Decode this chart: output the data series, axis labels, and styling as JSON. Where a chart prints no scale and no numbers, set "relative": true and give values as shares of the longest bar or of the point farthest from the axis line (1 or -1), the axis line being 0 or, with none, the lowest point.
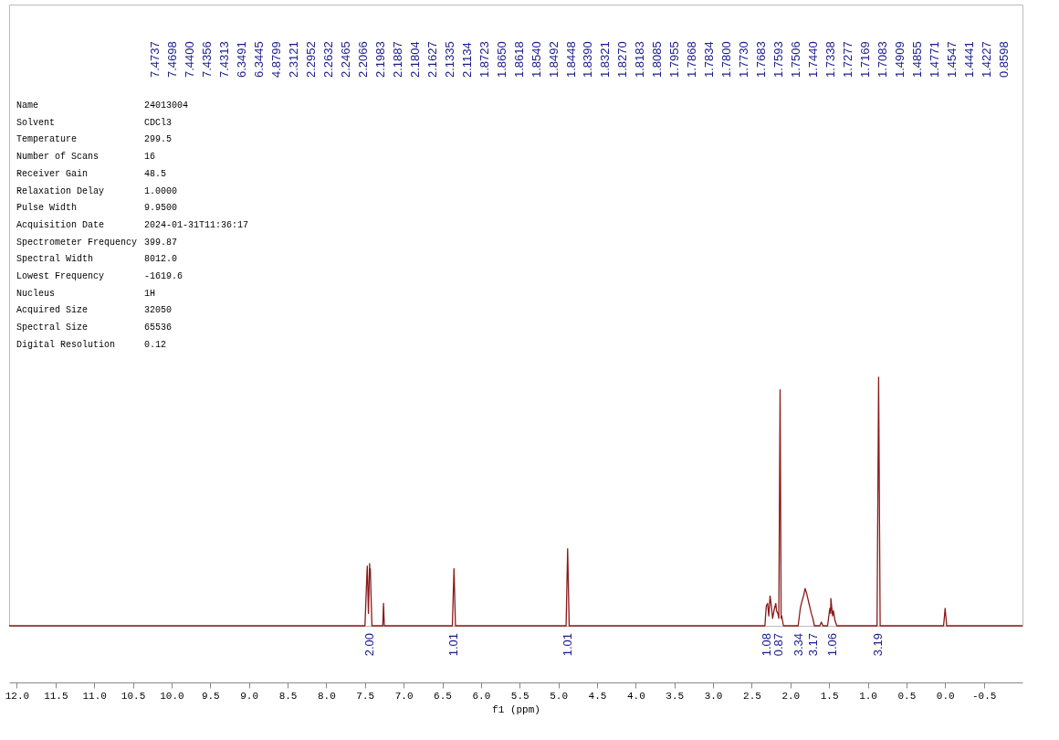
{
  "chart_data": {
    "type": "line",
    "relative": true,
    "xlabel": "f1 (ppm)",
    "grid": false,
    "marker": "none",
    "line_style": "solid",
    "xlim": [
      12.1,
      -1.0
    ],
    "xticks": [
      {
        "value": 12,
        "label": "12.0"
      },
      {
        "value": 11.5,
        "label": "11.5"
      },
      {
        "value": 11,
        "label": "11.0"
      },
      {
        "value": 10.5,
        "label": "10.5"
      },
      {
        "value": 10,
        "label": "10.0"
      },
      {
        "value": 9.5,
        "label": "9.5"
      },
      {
        "value": 9,
        "label": "9.0"
      },
      {
        "value": 8.5,
        "label": "8.5"
      },
      {
        "value": 8,
        "label": "8.0"
      },
      {
        "value": 7.5,
        "label": "7.5"
      },
      {
        "value": 7,
        "label": "7.0"
      },
      {
        "value": 6.5,
        "label": "6.5"
      },
      {
        "value": 6,
        "label": "6.0"
      },
      {
        "value": 5.5,
        "label": "5.5"
      },
      {
        "value": 5,
        "label": "5.0"
      },
      {
        "value": 4.5,
        "label": "4.5"
      },
      {
        "value": 4,
        "label": "4.0"
      },
      {
        "value": 3.5,
        "label": "3.5"
      },
      {
        "value": 3,
        "label": "3.0"
      },
      {
        "value": 2.5,
        "label": "2.5"
      },
      {
        "value": 2,
        "label": "2.0"
      },
      {
        "value": 1.5,
        "label": "1.5"
      },
      {
        "value": 1,
        "label": "1.0"
      },
      {
        "value": 0.5,
        "label": "0.5"
      },
      {
        "value": 0,
        "label": "0.0"
      },
      {
        "value": -0.5,
        "label": "-0.5"
      }
    ],
    "series": [
      {
        "color": "#8b1a1a",
        "x": [
          12.1,
          7.5,
          7.4737,
          7.4698,
          7.455,
          7.44,
          7.4356,
          7.4313,
          7.41,
          7.27,
          7.26,
          7.25,
          6.37,
          6.3491,
          6.33,
          4.9,
          4.8799,
          4.86,
          2.33,
          2.3121,
          2.2952,
          2.28,
          2.2632,
          2.2465,
          2.23,
          2.2066,
          2.1887,
          2.18,
          2.1627,
          2.15,
          2.1335,
          2.12,
          2.1134,
          2.09,
          1.9,
          1.8723,
          1.85,
          1.83,
          1.81,
          1.79,
          1.775,
          1.76,
          1.745,
          1.73,
          1.71,
          1.69,
          1.62,
          1.6,
          1.58,
          1.52,
          1.4909,
          1.48,
          1.4771,
          1.455,
          1.4441,
          1.4227,
          1.4,
          0.88,
          0.8598,
          0.84,
          0.02,
          0.0,
          -0.02,
          -1.0
        ],
        "values": [
          0,
          0,
          0.22,
          0.24,
          0.05,
          0.25,
          0.2,
          0.23,
          0,
          0,
          0.09,
          0,
          0,
          0.23,
          0,
          0,
          0.31,
          0,
          0,
          0.08,
          0.09,
          0.04,
          0.12,
          0.08,
          0.03,
          0.07,
          0.09,
          0.06,
          0.05,
          0.03,
          0.95,
          0.03,
          0.04,
          0,
          0,
          0.07,
          0.1,
          0.12,
          0.15,
          0.13,
          0.11,
          0.09,
          0.07,
          0.05,
          0.03,
          0,
          0,
          0.015,
          0,
          0,
          0.07,
          0.05,
          0.11,
          0.04,
          0.06,
          0.02,
          0,
          0,
          1,
          0,
          0,
          0.07,
          0,
          0
        ]
      }
    ],
    "annotations": [
      {
        "text": "2.00",
        "x": 7.44,
        "y": 0
      },
      {
        "text": "1.01",
        "x": 6.35,
        "y": 0
      },
      {
        "text": "1.01",
        "x": 4.88,
        "y": 0
      },
      {
        "text": "1.08",
        "x": 2.3,
        "y": 0
      },
      {
        "text": "0.87",
        "x": 2.15,
        "y": 0
      },
      {
        "text": "3.34",
        "x": 1.89,
        "y": 0
      },
      {
        "text": "3.17",
        "x": 1.7,
        "y": 0
      },
      {
        "text": "1.06",
        "x": 1.46,
        "y": 0
      },
      {
        "text": "3.19",
        "x": 0.86,
        "y": 0
      },
      "7.4737",
      "7.4698",
      "7.4400",
      "7.4356",
      "7.4313",
      "6.3491",
      "6.3445",
      "4.8799",
      "2.3121",
      "2.2952",
      "2.2632",
      "2.2465",
      "2.2066",
      "2.1983",
      "2.1887",
      "2.1804",
      "2.1627",
      "2.1335",
      "2.1134",
      "1.8723",
      "1.8650",
      "1.8618",
      "1.8540",
      "1.8492",
      "1.8448",
      "1.8390",
      "1.8321",
      "1.8270",
      "1.8183",
      "1.8085",
      "1.7955",
      "1.7868",
      "1.7834",
      "1.7800",
      "1.7730",
      "1.7683",
      "1.7593",
      "1.7506",
      "1.7440",
      "1.7338",
      "1.7277",
      "1.7169",
      "1.7083",
      "1.4909",
      "1.4855",
      "1.4771",
      "1.4547",
      "1.4441",
      "1.4227",
      "0.8598",
      "Name",
      "24013004",
      "Solvent",
      "CDCl3",
      "Temperature",
      "299.5",
      "Number of Scans",
      "16",
      "Receiver Gain",
      "48.5",
      "Relaxation Delay",
      "1.0000",
      "Pulse Width",
      "9.9500",
      "Acquisition Date",
      "2024-01-31T11:36:17",
      "Spectrometer Frequency",
      "399.87",
      "Spectral Width",
      "8012.0",
      "Lowest Frequency",
      "-1619.6",
      "Nucleus",
      "1H",
      "Acquired Size",
      "32050",
      "Spectral Size",
      "65536",
      "Digital Resolution",
      "0.12"
    ]
  }
}
